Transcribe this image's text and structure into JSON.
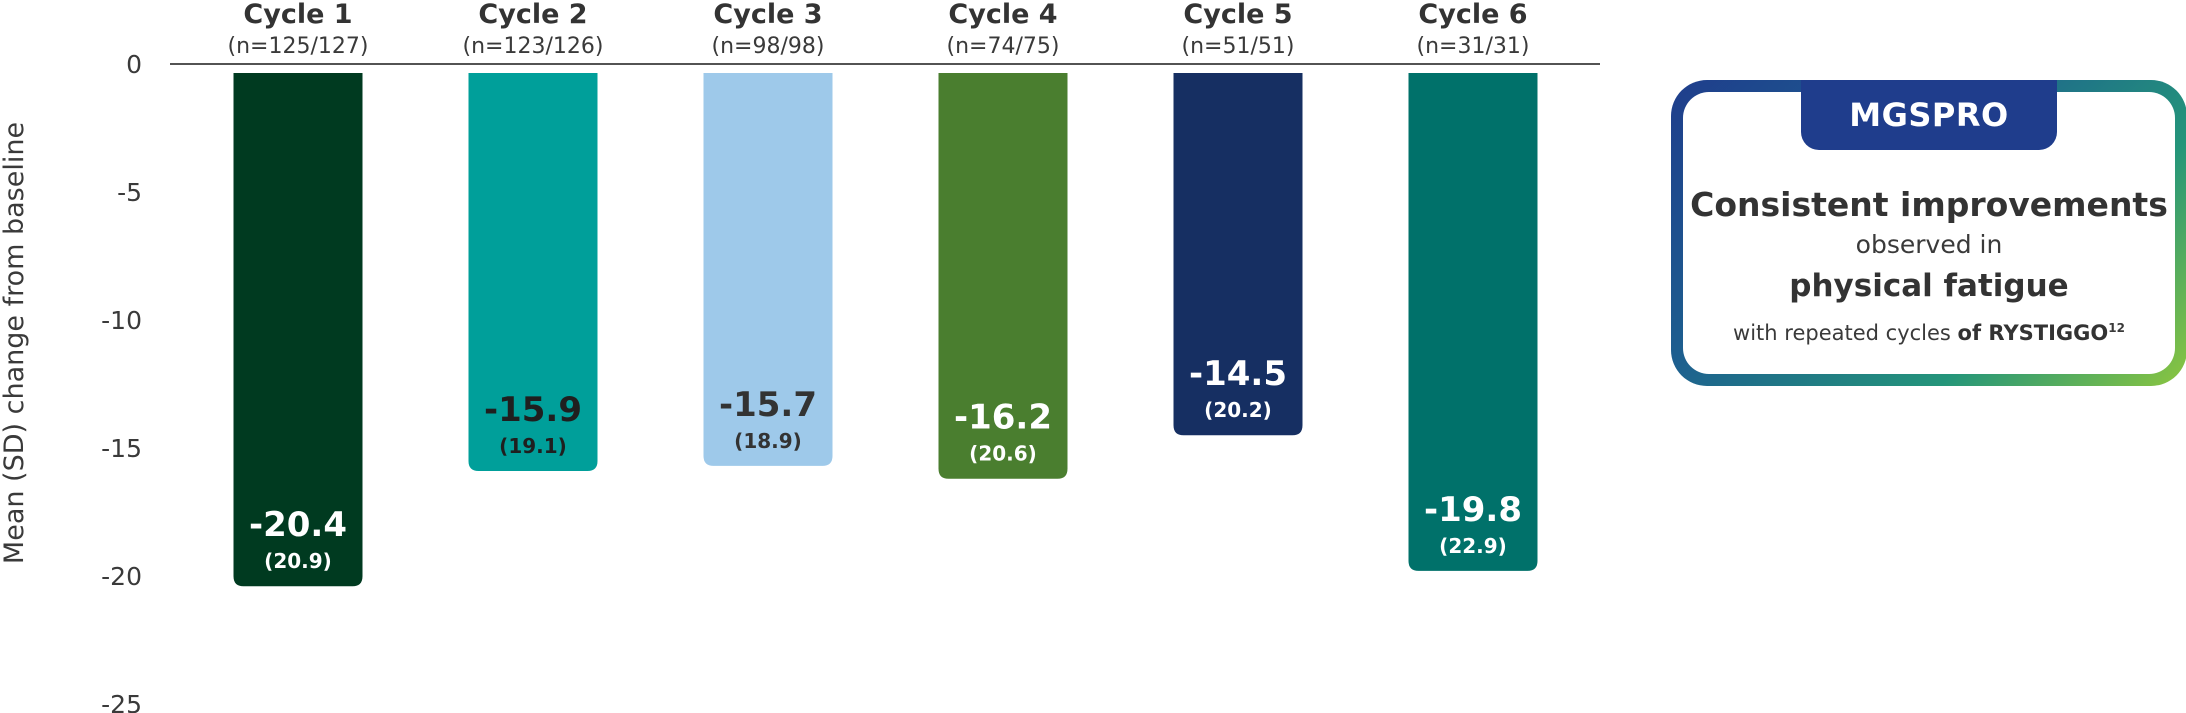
{
  "chart_data": {
    "type": "bar",
    "categories": [
      "Cycle 1",
      "Cycle 2",
      "Cycle 3",
      "Cycle 4",
      "Cycle 5",
      "Cycle 6"
    ],
    "n_labels": [
      "(n=125/127)",
      "(n=123/126)",
      "(n=98/98)",
      "(n=74/75)",
      "(n=51/51)",
      "(n=31/31)"
    ],
    "values": [
      -20.4,
      -15.9,
      -15.7,
      -16.2,
      -14.5,
      -19.8
    ],
    "value_labels": [
      "-20.4",
      "-15.9",
      "-15.7",
      "-16.2",
      "-14.5",
      "-19.8"
    ],
    "sd_labels": [
      "(20.9)",
      "(19.1)",
      "(18.9)",
      "(20.6)",
      "(20.2)",
      "(22.9)"
    ],
    "colors": [
      "#003a20",
      "#009f9a",
      "#9ec9ea",
      "#4a7e2f",
      "#162f62",
      "#00716a"
    ],
    "label_colors": [
      "#ffffff",
      "#1f1f1f",
      "#333333",
      "#ffffff",
      "#ffffff",
      "#ffffff"
    ],
    "ylabel": "Mean (SD) change from baseline",
    "yticks": [
      0,
      -5,
      -10,
      -15,
      -20,
      -25
    ],
    "ylim": [
      -25,
      0
    ],
    "grid": false,
    "legend": "none"
  },
  "callout": {
    "tab_label": "MGSPRO",
    "headline": "Consistent improvements",
    "line2": "observed in",
    "line3": "physical fatigue",
    "line4_prefix": "with repeated cycles ",
    "line4_bold": "of RYSTIGGO",
    "line4_sup": "12"
  }
}
